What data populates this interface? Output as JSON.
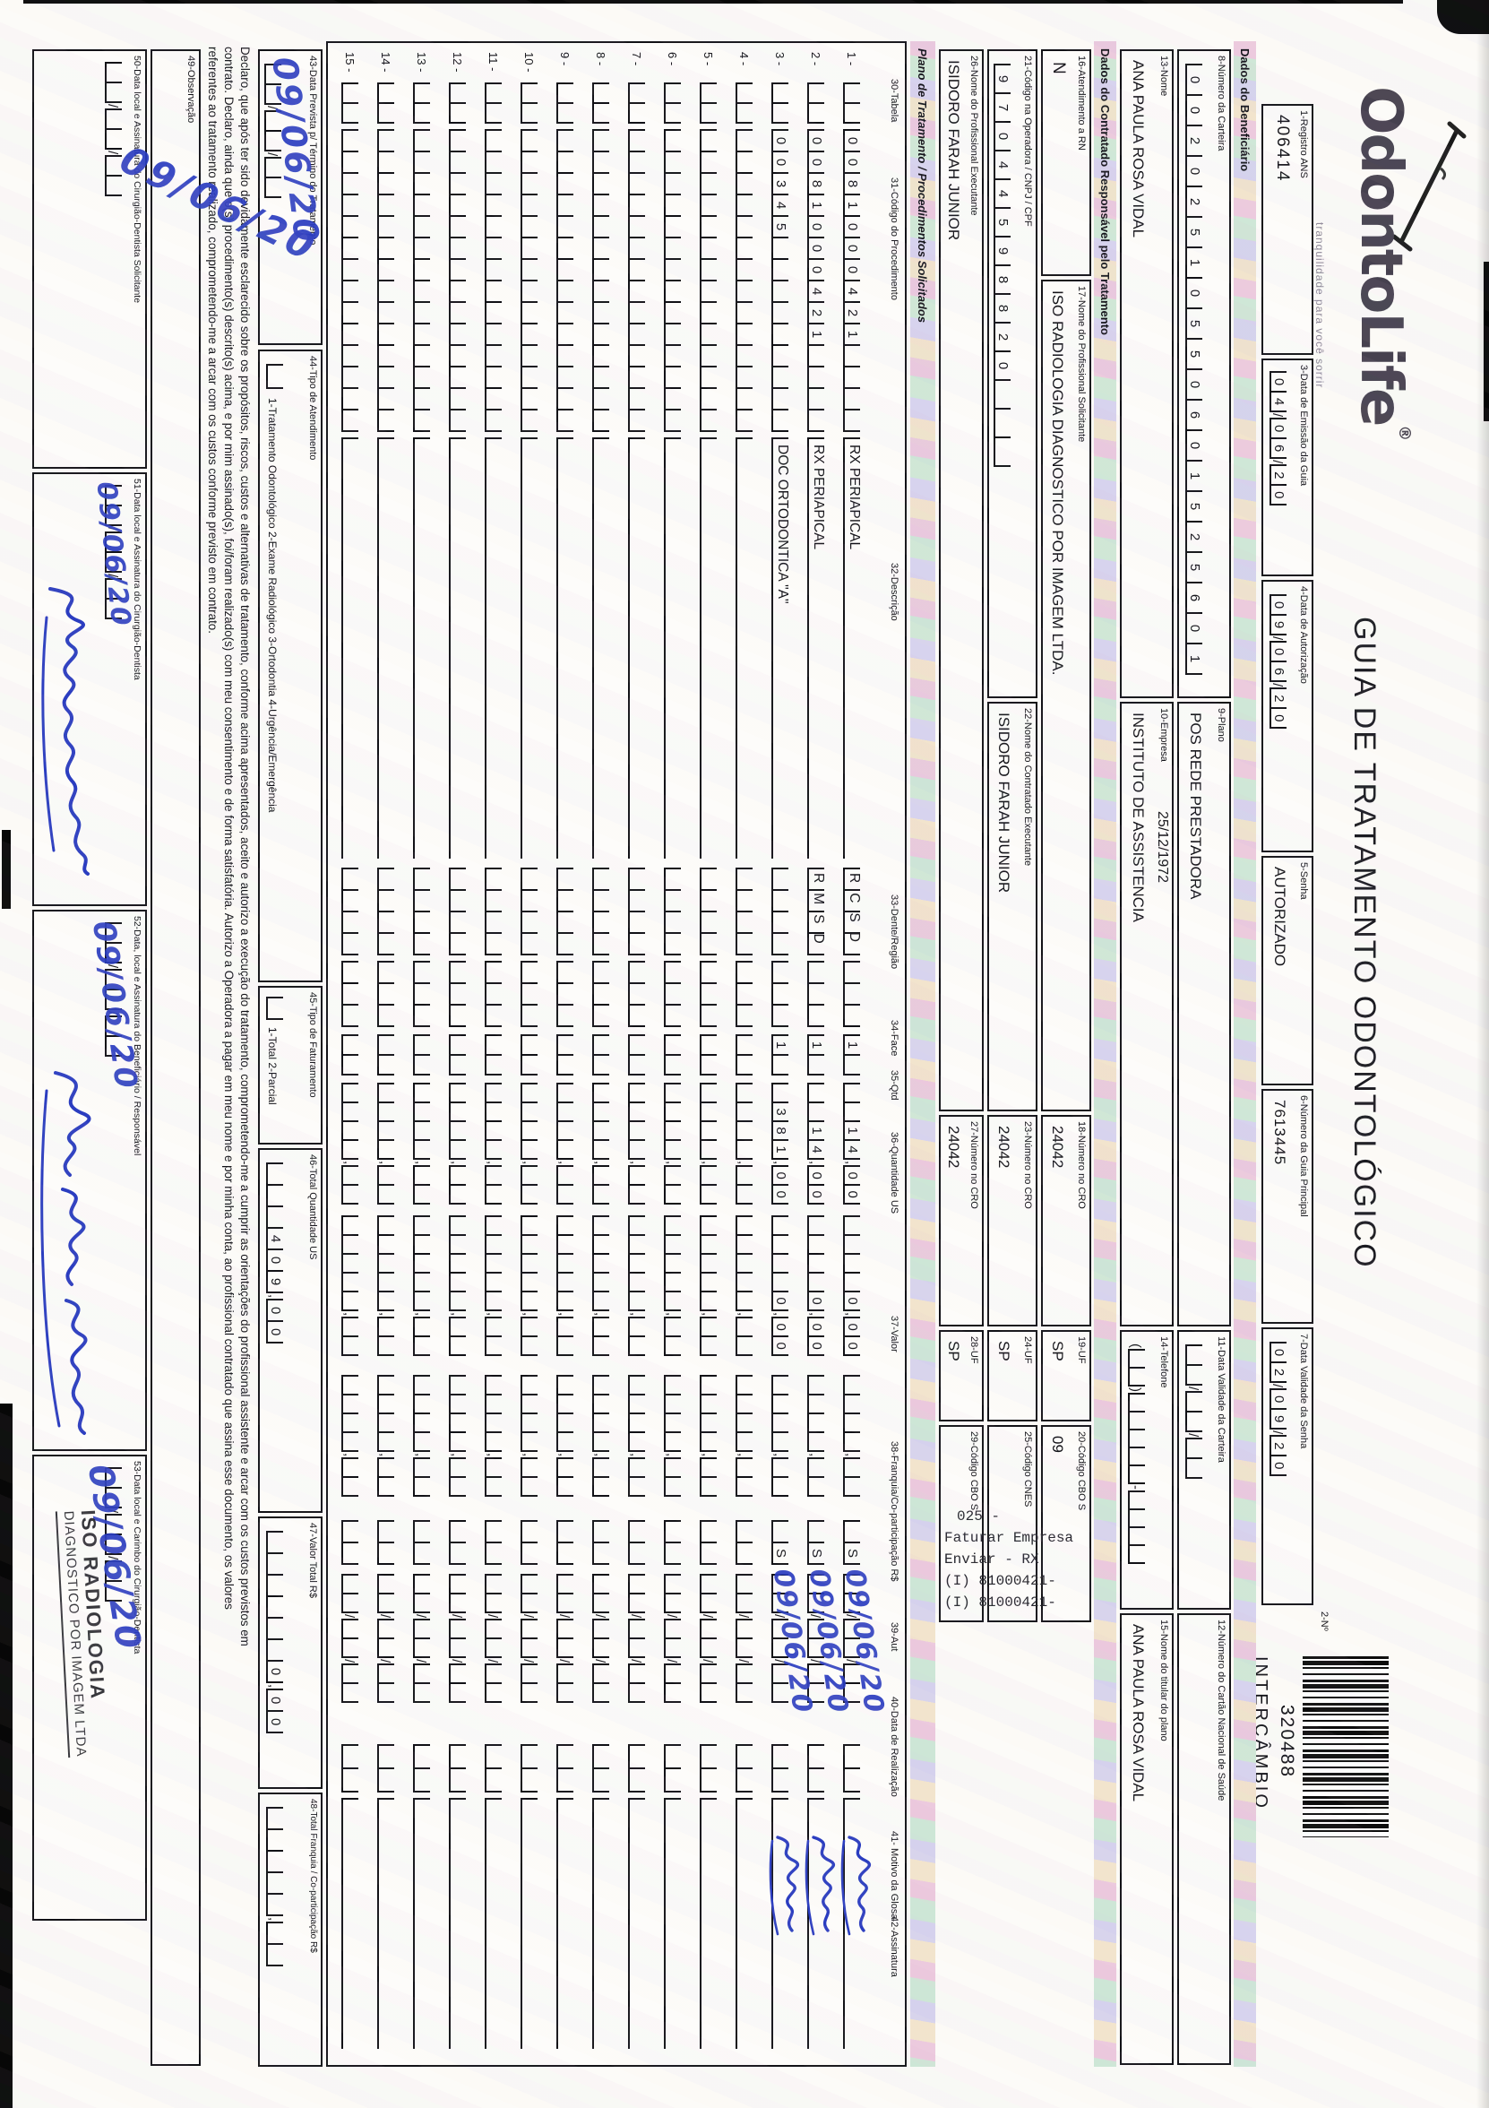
{
  "header": {
    "logo_text": "OdontoLife",
    "logo_reg": "®",
    "logo_tagline": "tranquilidade para você sorrir",
    "title": "GUIA DE TRATAMENTO ODONTOLÓGICO",
    "barcode_label": "2-Nº",
    "barcode_number": "320488",
    "barcode_caption": "INTERCÂMBIO"
  },
  "sections": {
    "beneficiario": "Dados do Beneficiário",
    "contratado": "Dados do Contratado Responsável pelo Tratamento",
    "plano": "Plano de Tratamento / Procedimentos Solicitados"
  },
  "fields": {
    "f1": {
      "label": "1-Registro ANS",
      "value": "406414"
    },
    "f3": {
      "label": "3-Data de Emissão da Guia",
      "value": "04/06/20"
    },
    "f4": {
      "label": "4-Data de Autorização",
      "value": "09/06/20"
    },
    "f5": {
      "label": "5-Senha",
      "value": "AUTORIZADO"
    },
    "f6": {
      "label": "6-Número da Guia Principal",
      "value": "7613445"
    },
    "f7": {
      "label": "7-Data Validade da Senha",
      "value": "02/09/20"
    },
    "f8": {
      "label": "8-Número da Carteira",
      "value": "00202510550601525601"
    },
    "f9": {
      "label": "9-Plano",
      "value": "POS REDE PRESTADORA"
    },
    "f10": {
      "label": "10-Empresa",
      "value": "INSTITUTO DE ASSISTENCIA",
      "extra": "25/12/1972"
    },
    "f11": {
      "label": "11-Data Validade da Carteira",
      "value": ""
    },
    "f12": {
      "label": "12-Número do Cartão Nacional de Saúde",
      "value": ""
    },
    "f13": {
      "label": "13-Nome",
      "value": "ANA PAULA ROSA VIDAL"
    },
    "f14": {
      "label": "14-Telefone",
      "value": ""
    },
    "f15": {
      "label": "15-Nome do titular do plano",
      "value": "ANA PAULA ROSA VIDAL"
    },
    "f16": {
      "label": "16-Atendimento a RN",
      "value": "N"
    },
    "f17": {
      "label": "17-Nome do Profissional Solicitante",
      "value": "ISO RADIOLOGIA DIAGNOSTICO POR IMAGEM LTDA."
    },
    "f18": {
      "label": "18-Número no CRO",
      "value": "24042"
    },
    "f19": {
      "label": "19-UF",
      "value": "SP"
    },
    "f20": {
      "label": "20-Código CBO S",
      "value": "09"
    },
    "f21": {
      "label": "21-Código na Operadora / CNPJ / CPF",
      "value": "97044598820"
    },
    "f22": {
      "label": "22-Nome do Contratado Executante",
      "value": "ISIDORO FARAH JUNIOR"
    },
    "f23": {
      "label": "23-Número no CRO",
      "value": "24042"
    },
    "f24": {
      "label": "24-UF",
      "value": "SP"
    },
    "f25": {
      "label": "25-Código CNES",
      "value": ""
    },
    "f26": {
      "label": "26-Nome do Profissional Executante",
      "value": "ISIDORO FARAH JUNIOR"
    },
    "f27": {
      "label": "27-Número no CRO",
      "value": "24042"
    },
    "f28": {
      "label": "28-UF",
      "value": "SP"
    },
    "f29": {
      "label": "29-Código CBO S",
      "value": ""
    },
    "f43": {
      "label": "43-Data Prevista p/ Término do Tratamento",
      "handwritten_date": "09/06/20"
    },
    "f44": {
      "label": "44-Tipo de Atendimento",
      "options": "1-Tratamento Odontológico   2-Exame Radiológico   3-Ortodontia   4-Urgência/Emergência",
      "value": ""
    },
    "f45": {
      "label": "45-Tipo de Faturamento",
      "options": "1-Total   2-Parcial",
      "value": ""
    },
    "f46": {
      "label": "46-Total Quantidade US",
      "value": "409,00"
    },
    "f47": {
      "label": "47-Valor Total R$",
      "value": "0,00"
    },
    "f48": {
      "label": "48-Total Franquia / Co-participação R$",
      "value": ""
    },
    "f49": {
      "label": "49-Observação"
    },
    "f50": {
      "label": "50-Data local e Assinatura do Cirurgião-Dentista Solicitante",
      "handwritten_date": "09/06/20"
    },
    "f51": {
      "label": "51-Data local e Assinatura do Cirurgião-Dentista",
      "handwritten_date": "09/06/20",
      "signature": "Mancini"
    },
    "f52": {
      "label": "52-Data, local e Assinatura do Beneficiário / Responsável",
      "handwritten_date": "09/06/20",
      "signature": "Ana Paula Rosa Vidal"
    },
    "f53": {
      "label": "53-Data local e Carimbo do Cirurgião-Dentista",
      "handwritten_date": "09/06/20",
      "stamp_line1": "ISO RADIOLOGIA",
      "stamp_line2": "DIAGNOSTICO POR IMAGEM LTDA"
    }
  },
  "beneficiary_birth_date": "25/12/1972",
  "table": {
    "headers": [
      "30-Tabela",
      "31-Código do Procedimento",
      "32-Descrição",
      "33-Dente/Região",
      "34-Face",
      "35-Qtd",
      "36-Quantidade US",
      "37-Valor",
      "38-Franquia/Co-participação R$",
      "39-Aut",
      "40-Data de Realização",
      "41- Motivo da Glosa",
      "42-Assinatura"
    ],
    "rows": [
      {
        "num": "1",
        "code": "0081000421",
        "desc": "RX PERIAPICAL",
        "dente": "RCSD",
        "face": "",
        "qtd": "1",
        "us": "14,00",
        "valor": "0,00",
        "franquia": "",
        "aut": "S",
        "data": "09/06/20",
        "glosa": "",
        "assinatura": "Ana"
      },
      {
        "num": "2",
        "code": "0081000421",
        "desc": "RX PERIAPICAL",
        "dente": "RMSD",
        "face": "",
        "qtd": "1",
        "us": "14,00",
        "valor": "0,00",
        "franquia": "",
        "aut": "S",
        "data": "09/06/20",
        "glosa": "",
        "assinatura": "Ana"
      },
      {
        "num": "3",
        "code": "00345",
        "desc": "DOC ORTODONTICA \"A\"",
        "dente": "",
        "face": "",
        "qtd": "1",
        "us": "381,00",
        "valor": "0,00",
        "franquia": "",
        "aut": "S",
        "data": "09/06/20",
        "glosa": "",
        "assinatura": "Ana"
      },
      {
        "num": "4"
      },
      {
        "num": "5"
      },
      {
        "num": "6"
      },
      {
        "num": "7"
      },
      {
        "num": "8"
      },
      {
        "num": "9"
      },
      {
        "num": "10"
      },
      {
        "num": "11"
      },
      {
        "num": "12"
      },
      {
        "num": "13"
      },
      {
        "num": "14"
      },
      {
        "num": "15"
      }
    ]
  },
  "declaration": {
    "line1": "Declaro, que após ter sido devidamente esclarecido sobre os propósitos, riscos, custos e alternativas de tratamento, conforme acima apresentados, aceito e autorizo a execução do tratamento, comprometendo-me a cumprir as orientações do profissional assistente e arcar com os custos previstos em",
    "line2": "contrato. Declaro, ainda que o(s) procedimento(s) descrito(s) acima, e por mim assinado(s), foi/foram realizado(s) com meu consentimento e de forma satisfatória. Autorizo a Operadora a pagar em meu nome e por minha conta, ao profissional contratado que assina esse documento, os valores",
    "line3": "referentes ao tratamento realizado, comprometendo-me a arcar com os custos conforme previsto em contrato."
  },
  "side_note": {
    "line1": "025 -",
    "line2": "Faturar Empresa",
    "line3": "Enviar - RX",
    "line4": "(I) 81000421-",
    "line5": "(I) 81000421-"
  }
}
